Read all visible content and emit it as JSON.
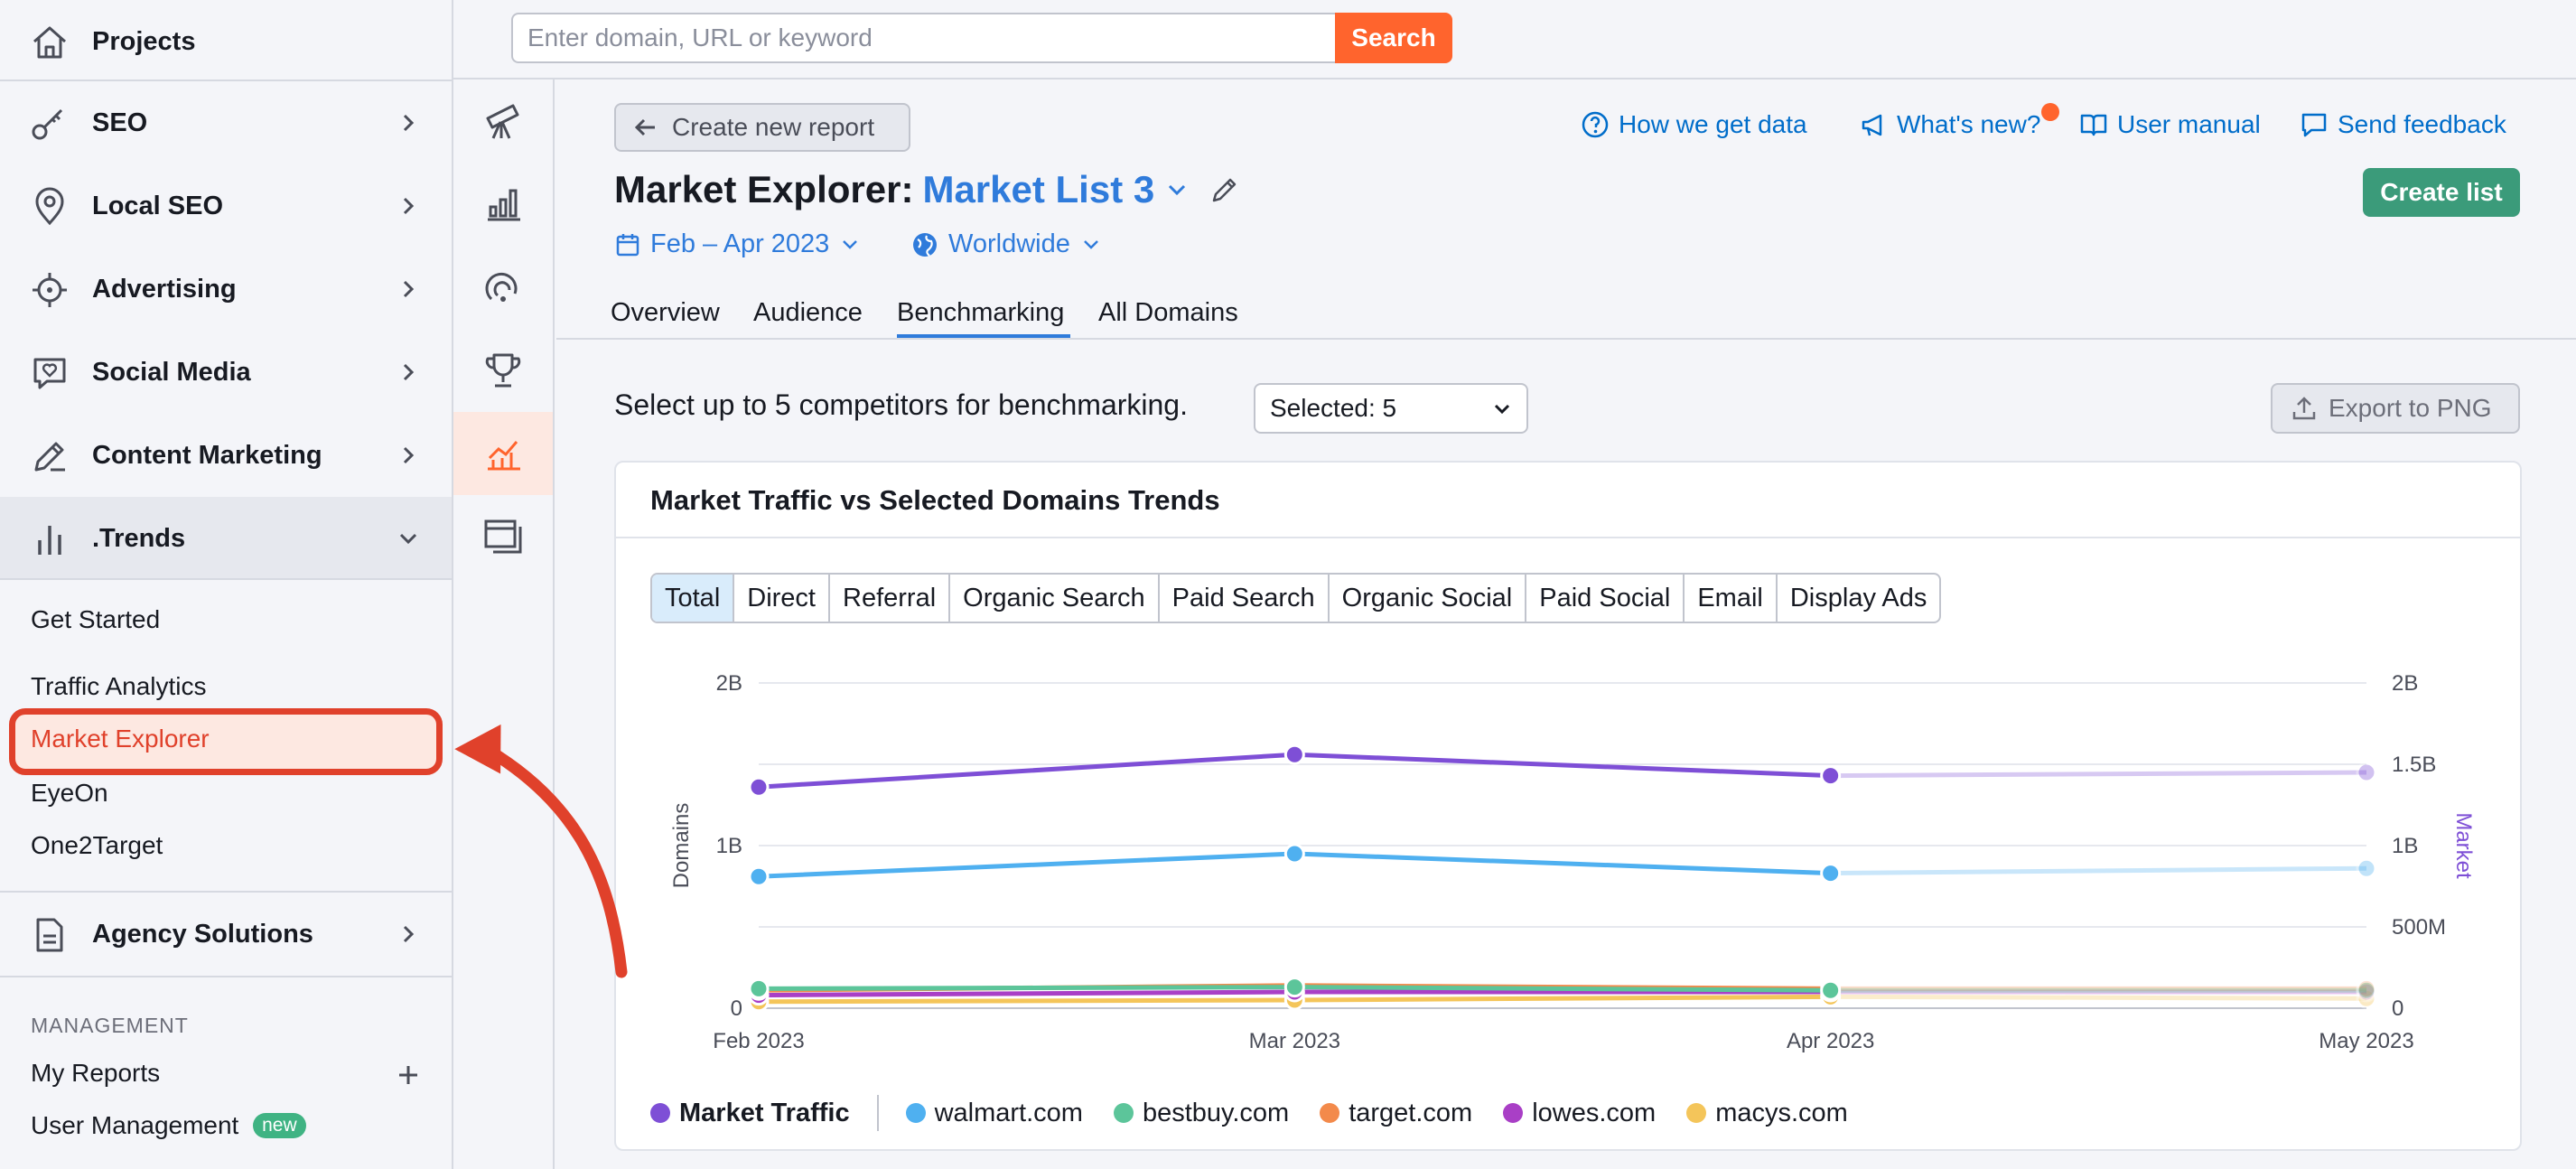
{
  "sidebar": {
    "projects": "Projects",
    "items": [
      {
        "label": "SEO"
      },
      {
        "label": "Local SEO"
      },
      {
        "label": "Advertising"
      },
      {
        "label": "Social Media"
      },
      {
        "label": "Content Marketing"
      },
      {
        "label": ".Trends"
      }
    ],
    "trends_sub": [
      "Get Started",
      "Traffic Analytics",
      "Market Explorer",
      "EyeOn",
      "One2Target"
    ],
    "agency": "Agency Solutions",
    "management_head": "MANAGEMENT",
    "my_reports": "My Reports",
    "user_management": "User Management",
    "new_badge": "new"
  },
  "search": {
    "placeholder": "Enter domain, URL or keyword",
    "button": "Search"
  },
  "header": {
    "back_label": "Create new report",
    "links": {
      "how": "How we get data",
      "whats_new": "What's new?",
      "manual": "User manual",
      "feedback": "Send feedback"
    },
    "create_list": "Create list",
    "title_prefix": "Market Explorer:",
    "list_name": "Market List 3",
    "date_range": "Feb – Apr 2023",
    "region": "Worldwide",
    "tabs": [
      "Overview",
      "Audience",
      "Benchmarking",
      "All Domains"
    ],
    "active_tab": "Benchmarking"
  },
  "benchmark": {
    "select_label": "Select up to 5 competitors for benchmarking.",
    "selected": "Selected: 5",
    "export": "Export to PNG"
  },
  "card": {
    "title": "Market Traffic vs Selected Domains Trends",
    "segments": [
      "Total",
      "Direct",
      "Referral",
      "Organic Search",
      "Paid Search",
      "Organic Social",
      "Paid Social",
      "Email",
      "Display Ads"
    ],
    "active_segment": "Total"
  },
  "colors": {
    "accent": "#2f7bdb",
    "market": "#7e4fd6",
    "walmart": "#4fb0f0",
    "bestbuy": "#5cc59a",
    "target": "#f38a4b",
    "lowes": "#a93fc6",
    "macys": "#f4c55a",
    "highlight": "#e0412b"
  },
  "chart_data": {
    "type": "line",
    "x": [
      "Feb 2023",
      "Mar 2023",
      "Apr 2023",
      "May 2023"
    ],
    "y_left": {
      "label": "Domains",
      "ticks": [
        "0",
        "1B",
        "2B"
      ],
      "range": [
        0,
        2000000000
      ]
    },
    "y_right": {
      "label": "Market",
      "ticks": [
        "0",
        "500M",
        "1B",
        "1.5B",
        "2B"
      ],
      "range": [
        0,
        2000000000
      ]
    },
    "series": [
      {
        "name": "Market Traffic",
        "axis": "right",
        "values": [
          1360000000,
          1560000000,
          1430000000,
          1450000000
        ]
      },
      {
        "name": "walmart.com",
        "axis": "left",
        "values": [
          810000000,
          950000000,
          830000000,
          860000000
        ]
      },
      {
        "name": "bestbuy.com",
        "axis": "left",
        "values": [
          120000000,
          130000000,
          110000000,
          110000000
        ]
      },
      {
        "name": "target.com",
        "axis": "left",
        "values": [
          110000000,
          140000000,
          120000000,
          120000000
        ]
      },
      {
        "name": "lowes.com",
        "axis": "left",
        "values": [
          80000000,
          100000000,
          100000000,
          100000000
        ]
      },
      {
        "name": "macys.com",
        "axis": "left",
        "values": [
          40000000,
          50000000,
          70000000,
          60000000
        ]
      }
    ],
    "legend_placement": "bottom-left",
    "grid": true
  }
}
